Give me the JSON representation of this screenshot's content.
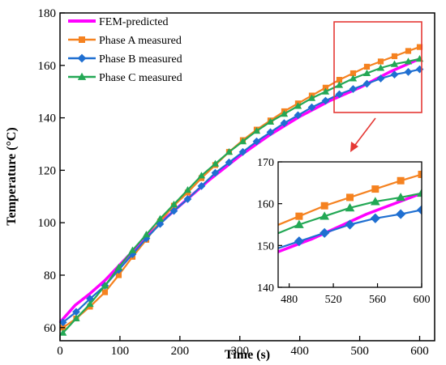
{
  "chart_data": {
    "type": "line",
    "title": "",
    "xlabel": "Time (s)",
    "ylabel": "Temperature (°C)",
    "xlim": [
      0,
      625
    ],
    "ylim": [
      55,
      180
    ],
    "x_ticks": [
      "0",
      "100",
      "200",
      "300",
      "400",
      "500",
      "600"
    ],
    "y_ticks": [
      "60",
      "80",
      "100",
      "120",
      "140",
      "160",
      "180"
    ],
    "legend_position": "top-left",
    "series": [
      {
        "name": "FEM-predicted",
        "color": "#ff00ff",
        "marker": "none",
        "x": [
          0,
          25,
          50,
          75,
          100,
          125,
          150,
          175,
          200,
          225,
          250,
          275,
          300,
          325,
          350,
          375,
          400,
          425,
          450,
          475,
          500,
          525,
          550,
          575,
          600
        ],
        "y": [
          62,
          68.5,
          73,
          78,
          84,
          90,
          96,
          101.5,
          106.5,
          111.5,
          116.5,
          121,
          125.5,
          129.5,
          133.5,
          137,
          140.5,
          143.5,
          146.5,
          149,
          151.5,
          154.5,
          157.5,
          160,
          162.5
        ]
      },
      {
        "name": "Phase A measured",
        "color": "#f58220",
        "marker": "square",
        "x": [
          5,
          27,
          50,
          75,
          98,
          121,
          144,
          167,
          190,
          213,
          236,
          259,
          282,
          305,
          328,
          351,
          374,
          397,
          420,
          443,
          466,
          489,
          512,
          535,
          558,
          581,
          600
        ],
        "y": [
          60,
          63.5,
          68,
          73.5,
          80,
          87,
          93.5,
          100.5,
          106.5,
          111.5,
          117,
          122,
          127,
          131.5,
          135.5,
          139,
          142.5,
          145.5,
          148.5,
          151.5,
          154.5,
          157,
          159.5,
          161.5,
          163.5,
          165.5,
          167
        ]
      },
      {
        "name": "Phase B measured",
        "color": "#1f6fd1",
        "marker": "diamond",
        "x": [
          5,
          27,
          50,
          75,
          98,
          121,
          144,
          167,
          190,
          213,
          236,
          259,
          282,
          305,
          328,
          351,
          374,
          397,
          420,
          443,
          466,
          489,
          512,
          535,
          558,
          581,
          600
        ],
        "y": [
          62,
          66,
          71,
          76,
          82,
          88,
          94,
          99.5,
          104.5,
          109,
          114,
          119,
          123,
          127,
          131,
          134.5,
          138,
          141,
          144,
          146.5,
          149,
          151,
          153,
          155,
          156.5,
          157.5,
          158.5
        ]
      },
      {
        "name": "Phase C measured",
        "color": "#23a855",
        "marker": "triangle",
        "x": [
          5,
          27,
          50,
          75,
          98,
          121,
          144,
          167,
          190,
          213,
          236,
          259,
          282,
          305,
          328,
          351,
          374,
          397,
          420,
          443,
          466,
          489,
          512,
          535,
          558,
          581,
          600
        ],
        "y": [
          58,
          63.5,
          69,
          76,
          83,
          89.5,
          95.5,
          101.5,
          107,
          112.5,
          118,
          122.5,
          127,
          131,
          135,
          138.5,
          141.5,
          144.5,
          147.5,
          150,
          152.5,
          155,
          157,
          159,
          160.5,
          161.5,
          162.5
        ]
      }
    ],
    "inset": {
      "xlim": [
        470,
        600
      ],
      "ylim": [
        140,
        170
      ],
      "x_ticks": [
        "480",
        "520",
        "560",
        "600"
      ],
      "y_ticks": [
        "140",
        "150",
        "160",
        "170"
      ]
    }
  }
}
